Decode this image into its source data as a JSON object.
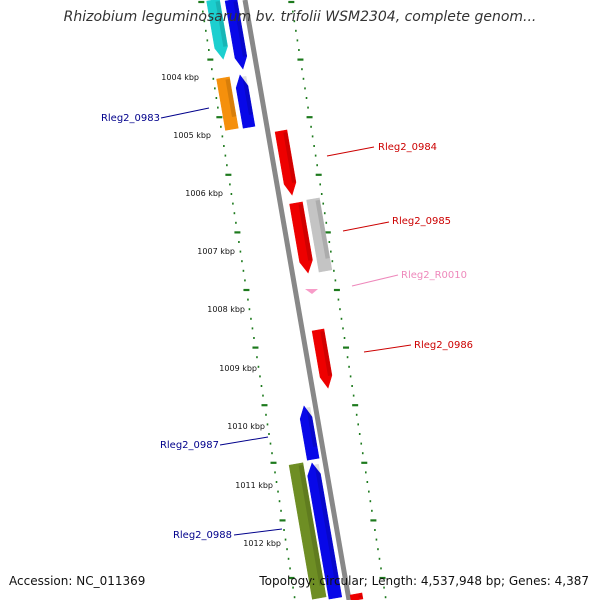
{
  "title": "Rhizobium leguminosarum bv. trifolii WSM2304, complete genom...",
  "footer": {
    "accession": "Accession: NC_011369",
    "topology": "Topology: circular; Length: 4,537,948 bp; Genes: 4,387"
  },
  "colors": {
    "cyan": "#1ccfcf",
    "blue": "#0808e8",
    "orange": "#f5900c",
    "red": "#ee0000",
    "gray": "#c4c4c4",
    "pink": "#f79cc8",
    "olive": "#6e8e24",
    "backbone": "#888888",
    "tick": "#1d7a1d",
    "label_blue": "#00008b",
    "label_red": "#cc0000",
    "label_pink": "#ee88bb"
  },
  "diagram": {
    "kbp_labels": [
      "1004 kbp",
      "1005 kbp",
      "1006 kbp",
      "1007 kbp",
      "1008 kbp",
      "1009 kbp",
      "1010 kbp",
      "1011 kbp",
      "1012 kbp"
    ],
    "genes": [
      {
        "id": "cyan-gene",
        "color": "cyan"
      },
      {
        "id": "blue-gene-top",
        "color": "blue"
      },
      {
        "id": "orange-gene",
        "color": "orange",
        "label": "Rleg2_0983"
      },
      {
        "id": "blue-gene-2",
        "color": "blue"
      },
      {
        "id": "red-gene-0984",
        "color": "red",
        "label": "Rleg2_0984"
      },
      {
        "id": "red-gene-a",
        "color": "red"
      },
      {
        "id": "gray-gene-0985",
        "color": "gray",
        "label": "Rleg2_0985"
      },
      {
        "id": "pink-gene-R0010",
        "color": "pink",
        "label": "Rleg2_R0010"
      },
      {
        "id": "red-gene-0986",
        "color": "red",
        "label": "Rleg2_0986"
      },
      {
        "id": "blue-gene-0987",
        "color": "blue",
        "label": "Rleg2_0987"
      },
      {
        "id": "blue-gene-long",
        "color": "blue"
      },
      {
        "id": "olive-gene-0988",
        "color": "olive",
        "label": "Rleg2_0988"
      },
      {
        "id": "red-gene-bottom",
        "color": "red"
      }
    ]
  }
}
